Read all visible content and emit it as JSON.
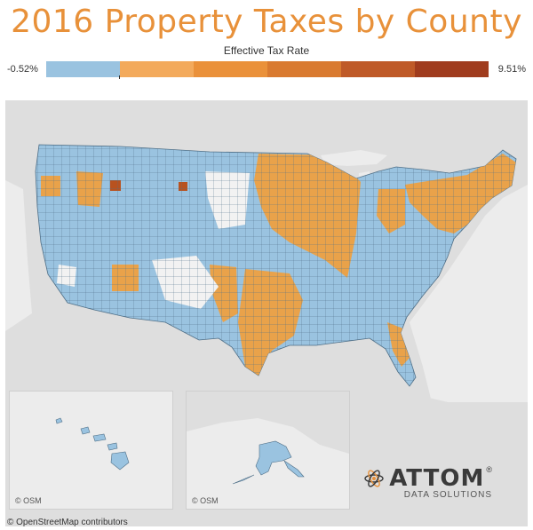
{
  "title": "2016 Property Taxes by County",
  "legend": {
    "title": "Effective Tax Rate",
    "min_label": "-0.52%",
    "max_label": "9.51%",
    "colors": [
      "#9ac3e0",
      "#f3aa5c",
      "#ea913a",
      "#d97a30",
      "#bf5a28",
      "#a03c1e"
    ]
  },
  "map": {
    "colors": {
      "low": "#9ac3e0",
      "mid": "#e9a24a",
      "high": "#b8521f",
      "nodata": "#f2f2f2",
      "land": "#dcdcdc",
      "water": "#ececec"
    },
    "insets": [
      {
        "region": "Hawaii",
        "attribution": "© OSM"
      },
      {
        "region": "Alaska",
        "attribution": "© OSM"
      }
    ]
  },
  "footer": {
    "credit": "© OpenStreetMap contributors",
    "logo_name": "ATTOM",
    "logo_registered": "®",
    "logo_tagline": "DATA SOLUTIONS"
  }
}
